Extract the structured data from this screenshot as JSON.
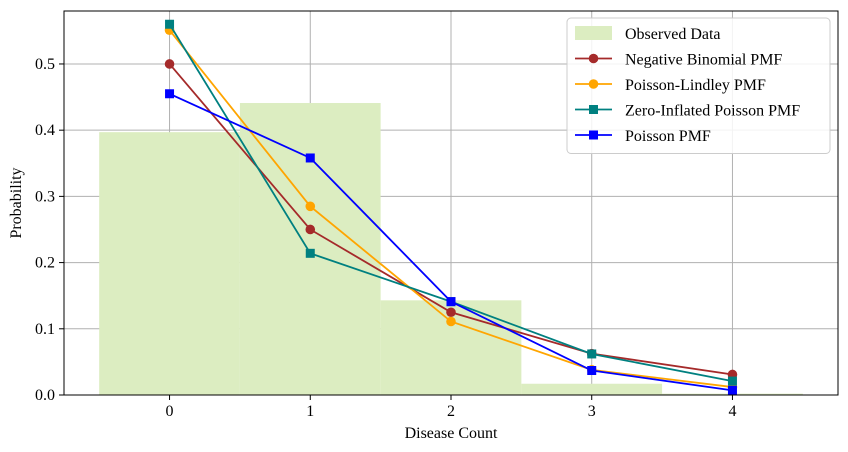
{
  "chart_data": {
    "type": "bar",
    "xlabel": "Disease Count",
    "ylabel": "Probability",
    "xlim": [
      -0.75,
      4.75
    ],
    "ylim": [
      0,
      0.58
    ],
    "grid": true,
    "legend_position": "top-right",
    "x_ticks": [
      0,
      1,
      2,
      3,
      4
    ],
    "x_tick_labels": [
      "0",
      "1",
      "2",
      "3",
      "4"
    ],
    "y_ticks": [
      0.0,
      0.1,
      0.2,
      0.3,
      0.4,
      0.5
    ],
    "y_tick_labels": [
      "0.0",
      "0.1",
      "0.2",
      "0.3",
      "0.4",
      "0.5"
    ],
    "observed": {
      "name": "Observed Data",
      "color": "#dcedc1",
      "categories": [
        0,
        1,
        2,
        3,
        4
      ],
      "values": [
        0.397,
        0.441,
        0.143,
        0.017,
        0.002
      ]
    },
    "series": [
      {
        "name": "Negative Binomial PMF",
        "color": "#a52a2a",
        "marker": "circle",
        "x": [
          0,
          1,
          2,
          3,
          4
        ],
        "values": [
          0.5,
          0.25,
          0.125,
          0.0625,
          0.031
        ]
      },
      {
        "name": "Poisson-Lindley PMF",
        "color": "#ffa500",
        "marker": "circle",
        "x": [
          0,
          1,
          2,
          3,
          4
        ],
        "values": [
          0.551,
          0.285,
          0.111,
          0.038,
          0.012
        ]
      },
      {
        "name": "Zero-Inflated Poisson PMF",
        "color": "#008080",
        "marker": "square",
        "x": [
          0,
          1,
          2,
          3,
          4
        ],
        "values": [
          0.56,
          0.214,
          0.141,
          0.062,
          0.021
        ]
      },
      {
        "name": "Poisson PMF",
        "color": "#0000ff",
        "marker": "square",
        "x": [
          0,
          1,
          2,
          3,
          4
        ],
        "values": [
          0.455,
          0.358,
          0.141,
          0.037,
          0.007
        ]
      }
    ]
  }
}
